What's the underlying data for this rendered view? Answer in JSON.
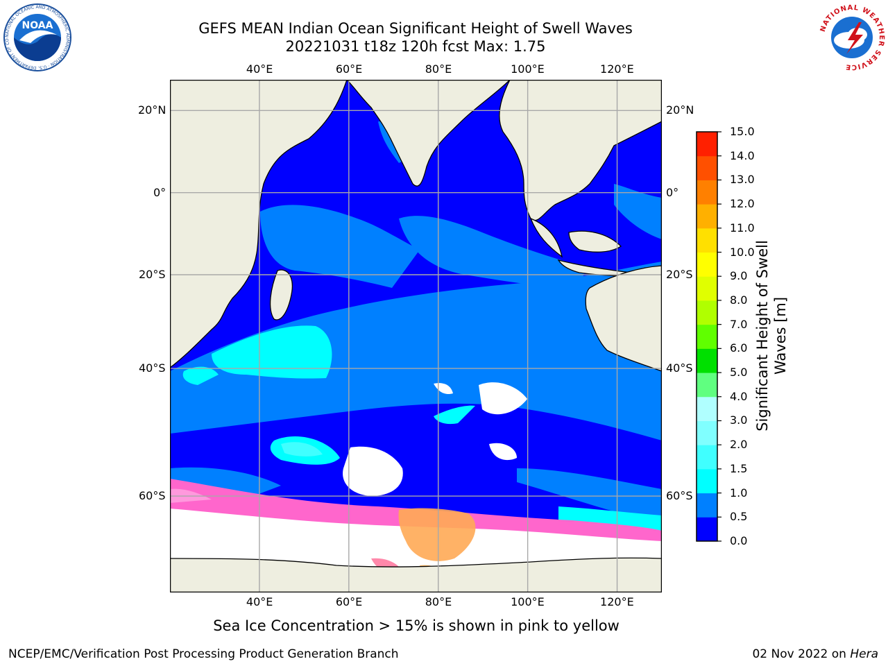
{
  "header": {
    "title_line1": "GEFS MEAN Indian Ocean Significant Height of Swell Waves",
    "title_line2": "20221031 t18z 120h fcst   Max: 1.75"
  },
  "logos": {
    "noaa": {
      "text": "NOAA",
      "ring_text": "NATIONAL OCEANIC AND ATMOSPHERIC ADMINISTRATION · U.S. DEPARTMENT OF COMMERCE"
    },
    "nws": {
      "ring_text": "NATIONAL WEATHER SERVICE"
    }
  },
  "map": {
    "lon_labels": [
      "40°E",
      "60°E",
      "80°E",
      "100°E",
      "120°E"
    ],
    "lat_labels": [
      "20°N",
      "0°",
      "20°S",
      "40°S",
      "60°S"
    ],
    "extent": {
      "lon": [
        20,
        130
      ],
      "lat": [
        -70,
        27
      ]
    }
  },
  "colorbar": {
    "title_line1": "Significant Height of Swell",
    "title_line2": "Waves [m]",
    "ticks": [
      "0.0",
      "0.5",
      "1.0",
      "1.5",
      "2.0",
      "3.0",
      "4.0",
      "5.0",
      "6.0",
      "7.0",
      "8.0",
      "9.0",
      "10.0",
      "11.0",
      "12.0",
      "13.0",
      "14.0",
      "15.0"
    ],
    "colors": [
      "#0000ff",
      "#0080ff",
      "#00ffff",
      "#40ffff",
      "#80ffff",
      "#b0ffff",
      "#60ff80",
      "#00e000",
      "#60ff00",
      "#b0ff00",
      "#e0ff00",
      "#ffff00",
      "#ffe000",
      "#ffb000",
      "#ff8000",
      "#ff5000",
      "#ff2000"
    ]
  },
  "caption": "Sea Ice Concentration > 15% is shown in pink to yellow",
  "footer": {
    "left": "NCEP/EMC/Verification Post Processing Product Generation Branch",
    "right_prefix": "02 Nov 2022 on ",
    "right_host": "Hera"
  }
}
